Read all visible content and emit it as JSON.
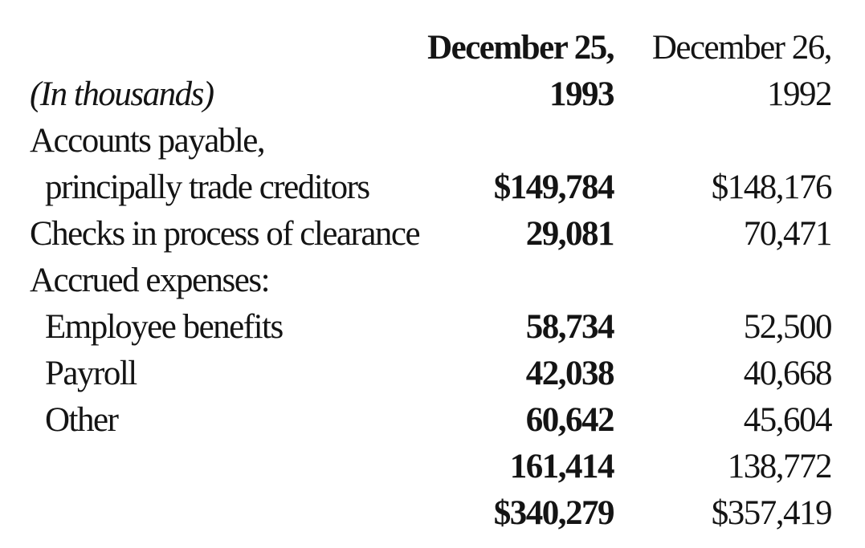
{
  "table": {
    "header": {
      "units_label": "(In thousands)",
      "col1_line1": "December 25,",
      "col1_line2": "1993",
      "col2_line1": "December 26,",
      "col2_line2": "1992"
    },
    "rows": [
      {
        "label": "Accounts payable,",
        "col1": "",
        "col2": ""
      },
      {
        "label": "principally trade creditors",
        "col1": "$149,784",
        "col2": "$148,176"
      },
      {
        "label": "Checks in process of clearance",
        "col1": "29,081",
        "col2": "70,471"
      },
      {
        "label": "Accrued expenses:",
        "col1": "",
        "col2": ""
      },
      {
        "label": "Employee benefits",
        "col1": "58,734",
        "col2": "52,500"
      },
      {
        "label": "Payroll",
        "col1": "42,038",
        "col2": "40,668"
      },
      {
        "label": "Other",
        "col1": "60,642",
        "col2": "45,604"
      },
      {
        "label": "",
        "col1": "161,414",
        "col2": "138,772"
      },
      {
        "label": "",
        "col1": "$340,279",
        "col2": "$357,419"
      }
    ]
  }
}
